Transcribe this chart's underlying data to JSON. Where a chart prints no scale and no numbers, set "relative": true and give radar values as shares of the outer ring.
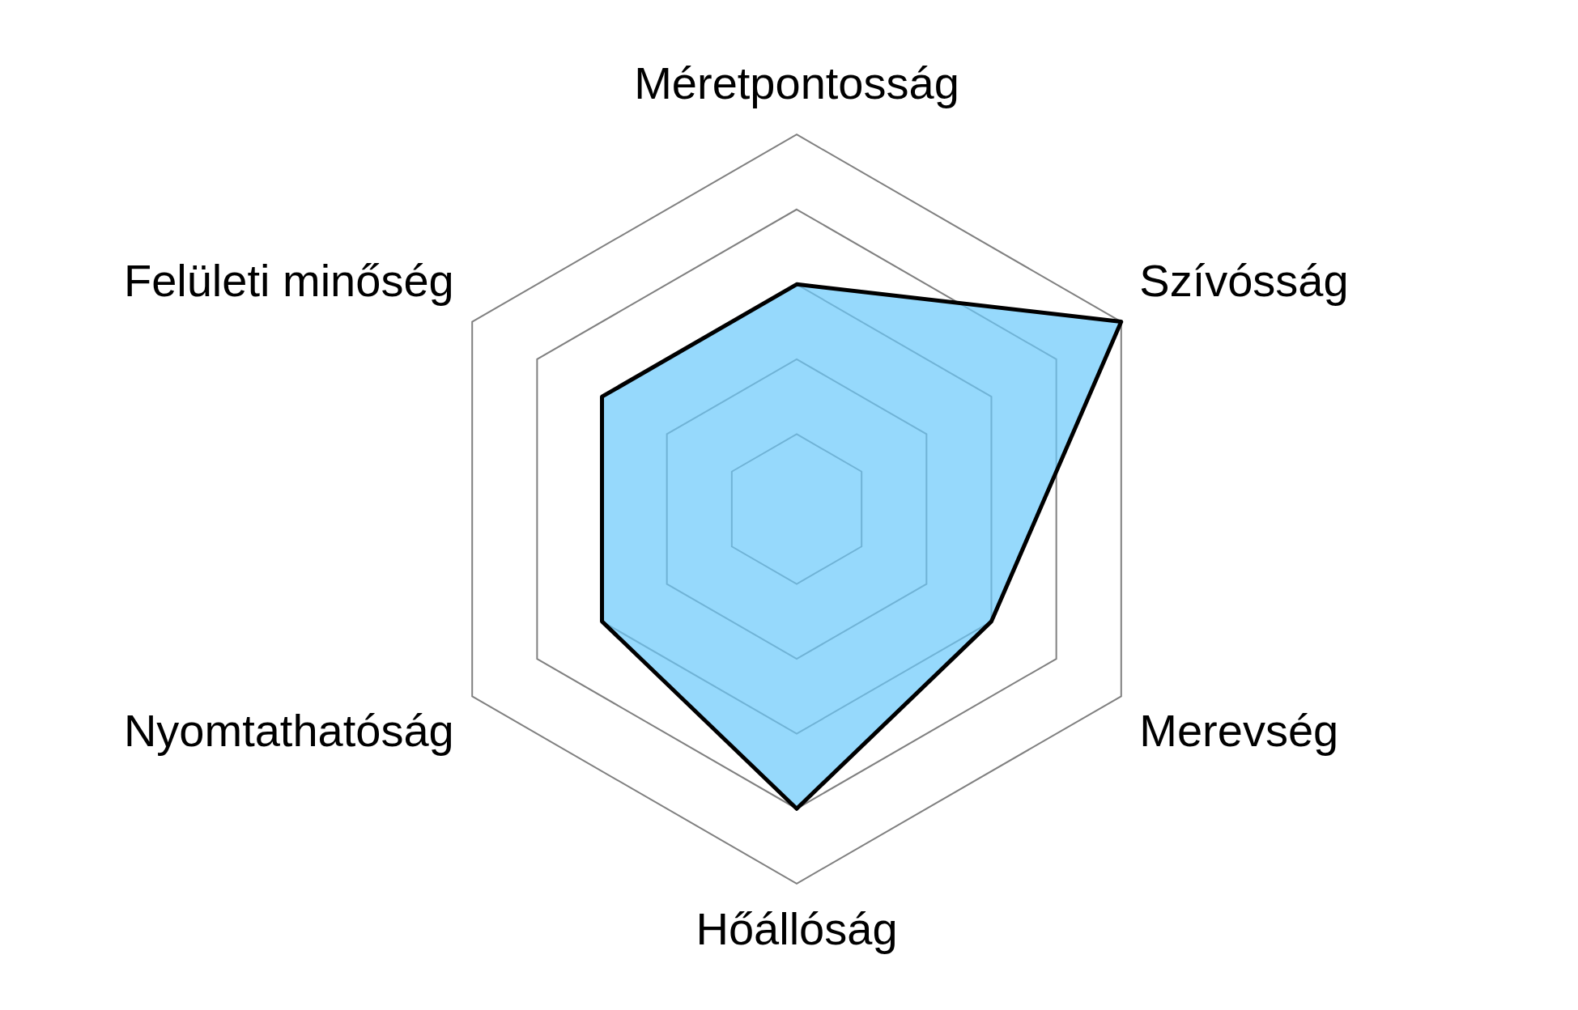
{
  "chart_data": {
    "type": "radar",
    "relative": true,
    "categories": [
      "Méretpontosság",
      "Szívósság",
      "Merevség",
      "Hőállóság",
      "Nyomtathatóság",
      "Felületi minőség"
    ],
    "series": [
      {
        "color": "#96d9fc",
        "values": [
          0.6,
          1.0,
          0.6,
          0.8,
          0.6,
          0.6
        ]
      }
    ],
    "grid": true
  }
}
